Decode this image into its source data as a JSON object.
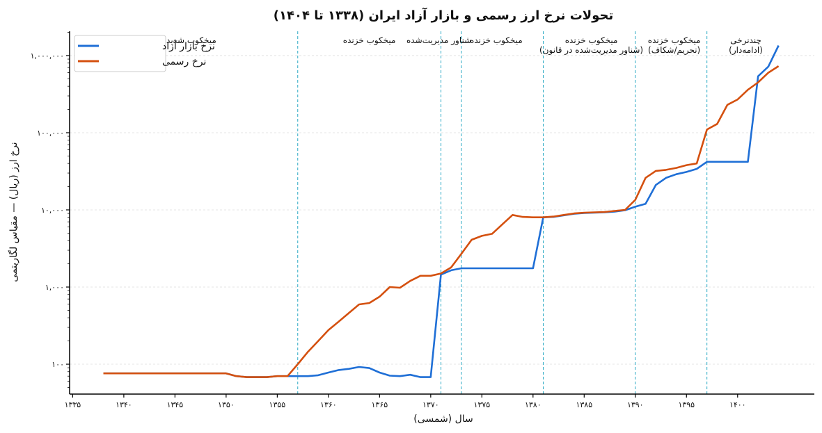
{
  "chart_data": {
    "type": "line",
    "title": "تحولات نرخ ارز رسمی و بازار آزاد ایران (۱۳۳۸ تا ۱۴۰۴)",
    "xlabel": "سال (شمسی)",
    "ylabel": "نرخ ارز (ریال) — مقیاس لگاریتمی",
    "yscale": "log",
    "xlim": [
      1334.7,
      1407.5
    ],
    "ylim": [
      41,
      2065000
    ],
    "grid": "horizontal-dashed",
    "legend_placement": "top-left",
    "x_ticks": [
      1335,
      1340,
      1345,
      1350,
      1355,
      1360,
      1365,
      1370,
      1375,
      1380,
      1385,
      1390,
      1395,
      1400
    ],
    "x_tick_labels": [
      "۱۳۳۵",
      "۱۳۴۰",
      "۱۳۴۵",
      "۱۳۵۰",
      "۱۳۵۵",
      "۱۳۶۰",
      "۱۳۶۵",
      "۱۳۷۰",
      "۱۳۷۵",
      "۱۳۸۰",
      "۱۳۸۵",
      "۱۳۹۰",
      "۱۳۹۵",
      "۱۴۰۰"
    ],
    "y_ticks": [
      100,
      1000,
      10000,
      100000,
      1000000
    ],
    "y_tick_labels": [
      "۱۰۰",
      "۱,۰۰۰",
      "۱۰,۰۰۰",
      "۱۰۰,۰۰۰",
      "۱,۰۰۰,۰۰۰"
    ],
    "x": [
      1338,
      1339,
      1340,
      1341,
      1342,
      1343,
      1344,
      1345,
      1346,
      1347,
      1348,
      1349,
      1350,
      1351,
      1352,
      1353,
      1354,
      1355,
      1356,
      1357,
      1358,
      1359,
      1360,
      1361,
      1362,
      1363,
      1364,
      1365,
      1366,
      1367,
      1368,
      1369,
      1370,
      1371,
      1372,
      1373,
      1374,
      1375,
      1376,
      1377,
      1378,
      1379,
      1380,
      1381,
      1382,
      1383,
      1384,
      1385,
      1386,
      1387,
      1388,
      1389,
      1390,
      1391,
      1392,
      1393,
      1394,
      1395,
      1396,
      1397,
      1398,
      1399,
      1400,
      1401,
      1402,
      1403,
      1404
    ],
    "series": [
      {
        "name": "نرخ بازار آزاد",
        "color": "#1f6fd6",
        "values": [
          76,
          76,
          76,
          76,
          76,
          76,
          76,
          76,
          76,
          76,
          76,
          76,
          76,
          70,
          68,
          68,
          68,
          70,
          70,
          70,
          70,
          72,
          78,
          84,
          87,
          92,
          89,
          78,
          71,
          70,
          73,
          68,
          68,
          1450,
          1650,
          1750,
          1750,
          1750,
          1750,
          1750,
          1750,
          1750,
          1750,
          8000,
          8100,
          8500,
          8900,
          9100,
          9200,
          9300,
          9500,
          9900,
          11000,
          12000,
          21000,
          26000,
          29000,
          31000,
          34000,
          42000,
          42000,
          42000,
          42000,
          42000,
          540000,
          720000,
          1350000
        ]
      },
      {
        "name": "نرخ رسمی",
        "color": "#d4500f",
        "values": [
          76,
          76,
          76,
          76,
          76,
          76,
          76,
          76,
          76,
          76,
          76,
          76,
          76,
          70,
          68,
          68,
          68,
          70,
          70,
          100,
          145,
          200,
          277,
          356,
          460,
          595,
          620,
          750,
          1000,
          980,
          1200,
          1400,
          1400,
          1500,
          1800,
          2700,
          4100,
          4600,
          4900,
          6500,
          8600,
          8100,
          8000,
          8000,
          8200,
          8600,
          9000,
          9200,
          9300,
          9400,
          9700,
          10000,
          13500,
          26000,
          32000,
          33000,
          35000,
          38000,
          40000,
          110000,
          130000,
          230000,
          270000,
          360000,
          450000,
          600000,
          730000
        ]
      }
    ],
    "vlines": [
      1357,
      1371,
      1373,
      1381,
      1390,
      1397
    ],
    "vline_color": "#2aa9c4",
    "annotations": [
      {
        "x": 1346.6,
        "lines": [
          "میخکوب شدید"
        ]
      },
      {
        "x": 1364.0,
        "lines": [
          "میخکوب خزنده"
        ]
      },
      {
        "x": 1370.8,
        "lines": [
          "شناور مدیریت‌شده"
        ]
      },
      {
        "x": 1376.4,
        "lines": [
          "میخکوب خزنده"
        ]
      },
      {
        "x": 1385.7,
        "lines": [
          "میخکوب خزنده",
          "(شناور مدیریت‌شده در قانون)"
        ]
      },
      {
        "x": 1393.8,
        "lines": [
          "میخکوب خزنده",
          "(تحریم/شکاف)"
        ]
      },
      {
        "x": 1400.8,
        "lines": [
          "چندنرخی",
          "(ادامه‌دار)"
        ]
      }
    ]
  }
}
